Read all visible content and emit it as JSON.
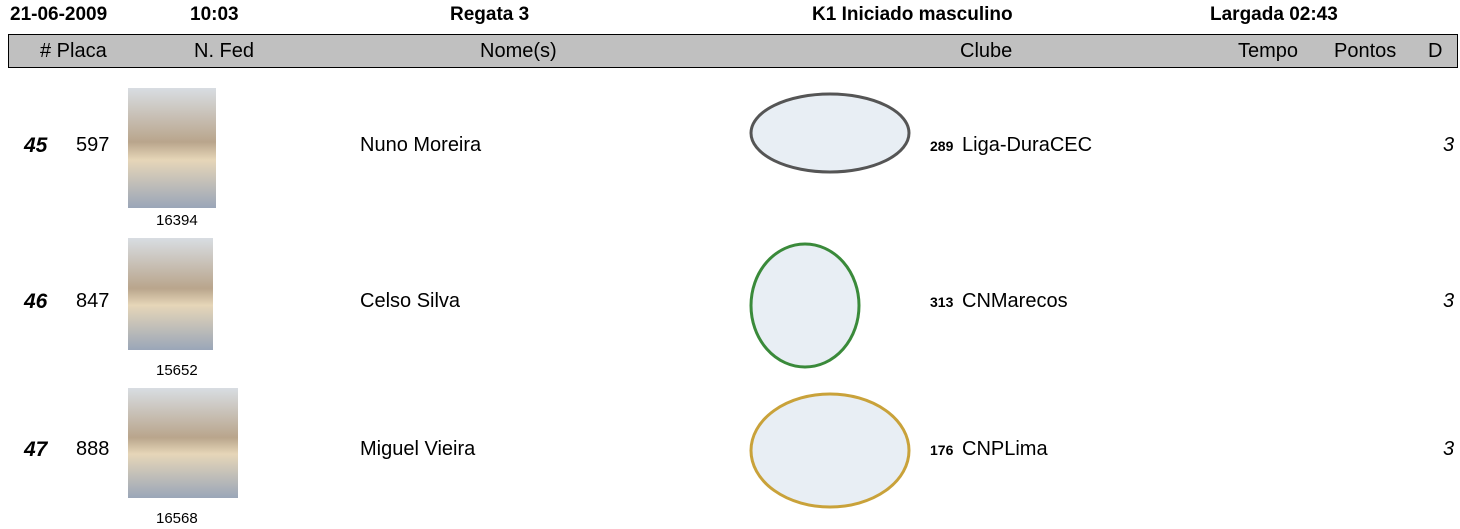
{
  "header": {
    "date": "21-06-2009",
    "time": "10:03",
    "race": "Regata  3",
    "category": "K1 Iniciado masculino",
    "start": "Largada 02:43"
  },
  "columns": [
    "# Placa",
    "N. Fed",
    "Nome(s)",
    "Clube",
    "Tempo",
    "Pontos",
    "D"
  ],
  "rows": [
    {
      "rank": 45,
      "placa": 597,
      "fed": 16394,
      "name": "Nuno Moreira",
      "club_number": 289,
      "club": "Liga-DuraCEC",
      "d": 3
    },
    {
      "rank": 46,
      "placa": 847,
      "fed": 15652,
      "name": "Celso Silva",
      "club_number": 313,
      "club": "CNMarecos",
      "d": 3
    },
    {
      "rank": 47,
      "placa": 888,
      "fed": 16568,
      "name": "Miguel Vieira",
      "club_number": 176,
      "club": "CNPLima",
      "d": 3
    }
  ]
}
